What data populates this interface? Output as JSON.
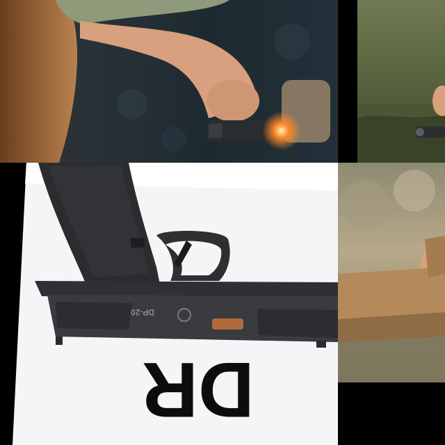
{
  "image": {
    "panels": [
      {
        "id": "top-left",
        "subject": "shooter-firing-pistol"
      },
      {
        "id": "top-right",
        "subject": "shooter-outdoors-grass"
      },
      {
        "id": "bottom-left",
        "subject": "product-shot-pistol"
      },
      {
        "id": "bottom-right",
        "subject": "tan-pistol-held-outdoors"
      }
    ],
    "slide_engraving": "DP-20",
    "large_text": "DR",
    "colors": {
      "background": "#000000",
      "muzzle_flash": "#ff8a2a",
      "tan_frame": "#b48a5a",
      "slide_bronze": "#b06a3a"
    }
  }
}
